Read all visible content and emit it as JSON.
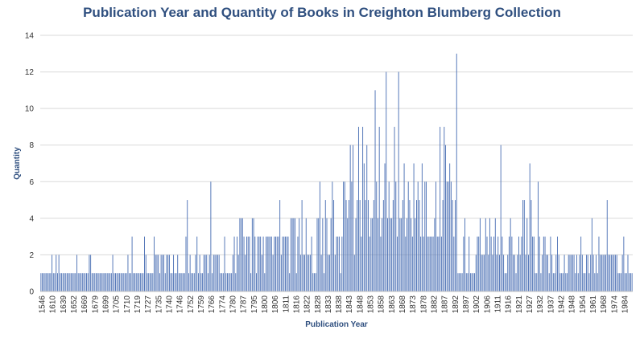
{
  "chart_data": {
    "type": "bar",
    "title": "Publication Year and Quantity of Books in Creighton Blumberg Collection",
    "xlabel": "Publication Year",
    "ylabel": "Quantity",
    "ylim": [
      0,
      14
    ],
    "yticks": [
      0,
      2,
      4,
      6,
      8,
      10,
      12,
      14
    ],
    "grid": true,
    "x_tick_labels": [
      "1546",
      "1610",
      "1639",
      "1652",
      "1669",
      "1679",
      "1699",
      "1705",
      "1710",
      "1719",
      "1727",
      "1735",
      "1740",
      "1746",
      "1752",
      "1759",
      "1766",
      "1774",
      "1780",
      "1787",
      "1795",
      "1800",
      "1806",
      "1811",
      "1816",
      "1822",
      "1828",
      "1833",
      "1838",
      "1843",
      "1848",
      "1853",
      "1858",
      "1863",
      "1868",
      "1873",
      "1878",
      "1882",
      "1887",
      "1892",
      "1897",
      "1902",
      "1906",
      "1911",
      "1916",
      "1921",
      "1927",
      "1932",
      "1937",
      "1942",
      "1948",
      "1954",
      "1961",
      "1968",
      "1974",
      "1984"
    ],
    "bar_color": "#4f73b6",
    "values": [
      1,
      1,
      1,
      1,
      1,
      1,
      1,
      1,
      2,
      1,
      1,
      2,
      1,
      2,
      1,
      1,
      1,
      1,
      1,
      1,
      1,
      1,
      1,
      1,
      1,
      1,
      2,
      1,
      1,
      1,
      1,
      1,
      1,
      1,
      1,
      2,
      2,
      1,
      1,
      1,
      1,
      1,
      1,
      1,
      1,
      1,
      1,
      1,
      1,
      1,
      1,
      1,
      2,
      1,
      1,
      1,
      1,
      1,
      1,
      1,
      1,
      1,
      1,
      2,
      1,
      1,
      3,
      1,
      1,
      1,
      1,
      1,
      1,
      1,
      1,
      3,
      2,
      1,
      1,
      1,
      1,
      1,
      3,
      2,
      2,
      2,
      1,
      2,
      2,
      2,
      1,
      2,
      2,
      2,
      1,
      1,
      2,
      1,
      1,
      2,
      1,
      1,
      1,
      1,
      1,
      3,
      5,
      1,
      2,
      1,
      1,
      1,
      2,
      3,
      1,
      2,
      1,
      1,
      2,
      2,
      2,
      1,
      2,
      6,
      1,
      2,
      2,
      2,
      2,
      2,
      1,
      1,
      1,
      3,
      1,
      1,
      1,
      1,
      1,
      2,
      3,
      1,
      3,
      2,
      4,
      4,
      4,
      3,
      2,
      3,
      3,
      3,
      1,
      4,
      4,
      3,
      1,
      3,
      3,
      3,
      2,
      3,
      1,
      3,
      3,
      3,
      3,
      3,
      2,
      3,
      3,
      3,
      3,
      5,
      2,
      3,
      3,
      3,
      3,
      3,
      1,
      4,
      4,
      4,
      4,
      1,
      3,
      4,
      2,
      5,
      2,
      2,
      4,
      2,
      2,
      2,
      3,
      1,
      1,
      1,
      4,
      4,
      6,
      2,
      4,
      1,
      5,
      4,
      2,
      2,
      4,
      6,
      5,
      2,
      3,
      3,
      3,
      1,
      3,
      6,
      6,
      5,
      4,
      5,
      8,
      6,
      8,
      2,
      4,
      5,
      9,
      5,
      3,
      9,
      7,
      5,
      8,
      5,
      3,
      4,
      4,
      5,
      11,
      6,
      4,
      9,
      3,
      4,
      5,
      7,
      12,
      4,
      6,
      4,
      4,
      5,
      9,
      6,
      3,
      12,
      4,
      4,
      5,
      7,
      3,
      4,
      6,
      5,
      4,
      3,
      7,
      4,
      5,
      6,
      5,
      3,
      7,
      3,
      6,
      6,
      3,
      3,
      3,
      3,
      3,
      4,
      6,
      3,
      3,
      9,
      3,
      5,
      9,
      8,
      6,
      6,
      7,
      6,
      5,
      3,
      5,
      13,
      1,
      1,
      1,
      1,
      3,
      4,
      1,
      1,
      3,
      1,
      1,
      1,
      1,
      2,
      3,
      3,
      4,
      2,
      2,
      2,
      4,
      3,
      2,
      4,
      3,
      2,
      3,
      4,
      2,
      3,
      2,
      8,
      3,
      2,
      1,
      1,
      2,
      3,
      4,
      3,
      2,
      2,
      1,
      2,
      3,
      2,
      3,
      5,
      5,
      2,
      4,
      2,
      7,
      5,
      3,
      3,
      1,
      1,
      6,
      3,
      1,
      2,
      3,
      3,
      2,
      2,
      1,
      3,
      2,
      1,
      1,
      2,
      3,
      2,
      1,
      1,
      1,
      2,
      1,
      1,
      2,
      2,
      2,
      2,
      2,
      1,
      2,
      1,
      2,
      3,
      2,
      1,
      1,
      2,
      2,
      1,
      2,
      4,
      2,
      1,
      2,
      1,
      3,
      2,
      2,
      2,
      2,
      2,
      5,
      2,
      2,
      2,
      2,
      2,
      2,
      2,
      1,
      1,
      1,
      2,
      3,
      1,
      1,
      2,
      1,
      1,
      1
    ]
  }
}
